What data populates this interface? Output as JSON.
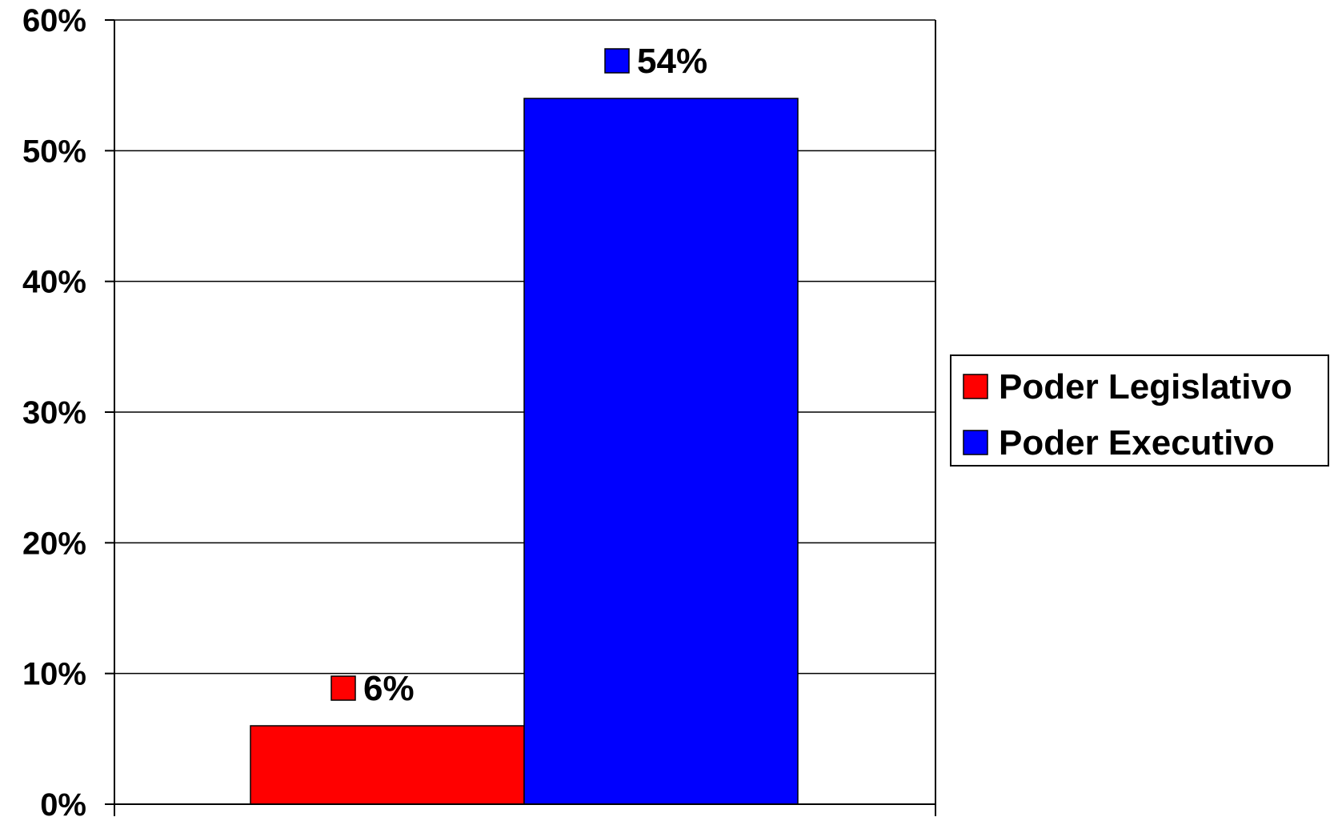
{
  "chart_data": {
    "type": "bar",
    "categories": [
      ""
    ],
    "series": [
      {
        "name": "Poder Legislativo",
        "values": [
          6
        ],
        "color": "#ff0000",
        "label": "6%"
      },
      {
        "name": "Poder Executivo",
        "values": [
          54
        ],
        "color": "#0000ff",
        "label": "54%"
      }
    ],
    "title": "",
    "xlabel": "",
    "ylabel": "",
    "ylim": [
      0,
      60
    ],
    "yticks": [
      0,
      10,
      20,
      30,
      40,
      50,
      60
    ],
    "ytick_labels": [
      "0%",
      "10%",
      "20%",
      "30%",
      "40%",
      "50%",
      "60%"
    ],
    "grid": true,
    "legend": {
      "placement": "right",
      "entries": [
        "Poder Legislativo",
        "Poder Executivo"
      ]
    }
  }
}
